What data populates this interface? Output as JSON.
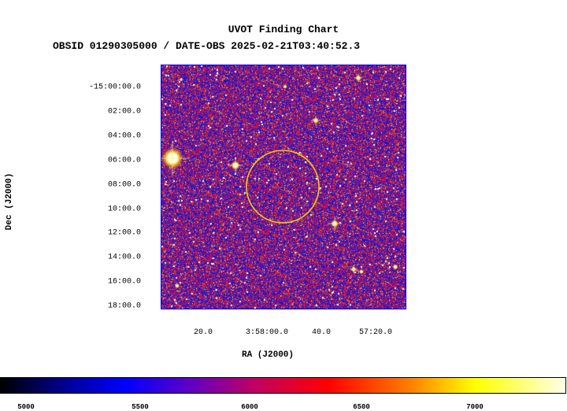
{
  "chart_data": {
    "type": "heatmap",
    "title": "UVOT Finding Chart",
    "subtitle": "OBSID 01290305000 / DATE-OBS 2025-02-21T03:40:52.3",
    "xlabel": "RA (J2000)",
    "ylabel": "Dec (J2000)",
    "x_ticks": [
      "20.0",
      "3:58:00.0",
      "40.0",
      "57:20.0"
    ],
    "y_ticks": [
      "-15:00:00.0",
      "02:00.0",
      "04:00.0",
      "06:00.0",
      "08:00.0",
      "10:00.0",
      "12:00.0",
      "14:00.0",
      "16:00.0",
      "18:00.0"
    ],
    "colorbar": {
      "ticks": [
        "5000",
        "5500",
        "6000",
        "6500",
        "7000"
      ],
      "range": [
        4960,
        7420
      ],
      "colormap": "black-blue-red-yellow-white"
    },
    "circle_color": "#ffc800",
    "frame_color": "#0000ff"
  }
}
